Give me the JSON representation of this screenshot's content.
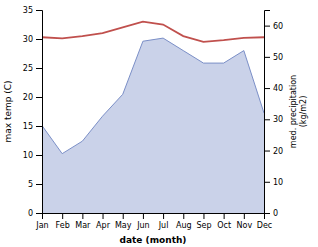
{
  "chart_data": {
    "type": "line",
    "xlabel": "date (month)",
    "ylabel": "max temp (C)",
    "y2label": "med. precipitation\n(kg/m2)",
    "categories": [
      "Jan",
      "Feb",
      "Mar",
      "Apr",
      "May",
      "Jun",
      "Jul",
      "Aug",
      "Sep",
      "Oct",
      "Nov",
      "Dec"
    ],
    "series": [
      {
        "type": "line",
        "color": "#c0504d",
        "values": [
          30.3,
          30.1,
          30.5,
          31.0,
          32.0,
          33.0,
          32.5,
          30.5,
          29.5,
          29.8,
          30.2,
          30.3
        ]
      },
      {
        "type": "area",
        "color": "#7b8fc7",
        "axis": "y2",
        "values": [
          28,
          19,
          23,
          31,
          38,
          55,
          56,
          52,
          48,
          48,
          52,
          32
        ]
      }
    ],
    "ylim": [
      0,
      35
    ],
    "yticks": [
      0,
      5,
      10,
      15,
      20,
      25,
      30,
      35
    ],
    "y2lim": [
      0,
      65
    ],
    "y2ticks": [
      0,
      10,
      20,
      30,
      40,
      50,
      60
    ],
    "grid": false
  }
}
